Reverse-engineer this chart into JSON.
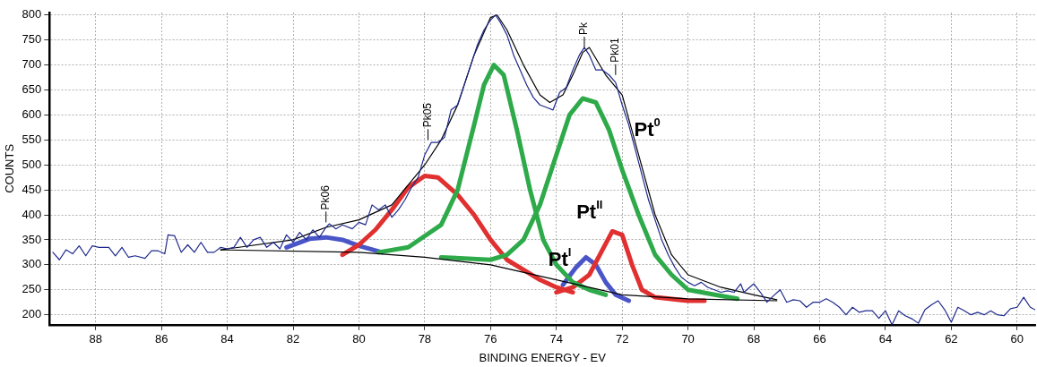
{
  "chart_data": {
    "type": "line",
    "xlabel": "BINDING ENERGY - EV",
    "ylabel": "COUNTS",
    "xlim": [
      89.4,
      59.45
    ],
    "xticks": [
      88,
      86,
      84,
      82,
      80,
      78,
      76,
      74,
      72,
      70,
      68,
      66,
      64,
      62,
      60
    ],
    "ylim": [
      180,
      805
    ],
    "yticks": [
      200,
      250,
      300,
      350,
      400,
      450,
      500,
      550,
      600,
      650,
      700,
      750,
      800
    ],
    "grid": true,
    "legend": false,
    "marker": "none",
    "line_style": "solid",
    "annotations": [
      {
        "text": "Pk06",
        "x": 81.0,
        "y": 385
      },
      {
        "text": "Pk05",
        "x": 77.9,
        "y": 550
      },
      {
        "text": "Pk",
        "x": 73.15,
        "y": 735
      },
      {
        "text": "Pk01",
        "x": 72.2,
        "y": 680
      },
      {
        "text": "Pt$^{0}$",
        "x": 71.8,
        "y": 580
      },
      {
        "text": "Pt$^{II}$",
        "x": 72.3,
        "y": 367
      },
      {
        "text": "Pt$^{I}$",
        "x": 73.1,
        "y": 315
      }
    ],
    "series": [
      {
        "color": "#1f2a8c",
        "x": [
          89.3,
          89.1,
          88.9,
          88.7,
          88.5,
          88.3,
          88.1,
          87.9,
          87.6,
          87.4,
          87.2,
          87.0,
          86.8,
          86.5,
          86.3,
          86.1,
          85.9,
          85.8,
          85.6,
          85.4,
          85.2,
          85.0,
          84.8,
          84.6,
          84.4,
          84.2,
          84.0,
          83.8,
          83.6,
          83.4,
          83.2,
          83.0,
          82.8,
          82.6,
          82.4,
          82.2,
          82.0,
          81.8,
          81.6,
          81.4,
          81.2,
          81.0,
          80.9,
          80.7,
          80.5,
          80.2,
          80.0,
          79.8,
          79.6,
          79.4,
          79.2,
          79.0,
          78.8,
          78.6,
          78.4,
          78.2,
          78.0,
          77.8,
          77.6,
          77.4,
          77.2,
          77.0,
          76.8,
          76.6,
          76.4,
          76.2,
          76.0,
          75.85,
          75.7,
          75.5,
          75.3,
          75.1,
          74.9,
          74.7,
          74.5,
          74.3,
          74.1,
          73.9,
          73.7,
          73.5,
          73.3,
          73.15,
          73.0,
          72.8,
          72.6,
          72.4,
          72.2,
          72.0,
          71.8,
          71.6,
          71.4,
          71.2,
          71.0,
          70.8,
          70.6,
          70.4,
          70.2,
          70.0,
          69.8,
          69.6,
          69.4,
          69.2,
          69.0,
          68.8,
          68.6,
          68.4,
          68.3,
          68.0,
          67.8,
          67.6,
          67.4,
          67.2,
          67.0,
          66.8,
          66.6,
          66.4,
          66.2,
          66.0,
          65.8,
          65.6,
          65.4,
          65.2,
          65.0,
          64.8,
          64.6,
          64.4,
          64.2,
          64.0,
          63.8,
          63.6,
          63.4,
          63.2,
          63.0,
          62.8,
          62.6,
          62.4,
          62.2,
          62.0,
          61.8,
          61.6,
          61.4,
          61.2,
          61.0,
          60.8,
          60.6,
          60.4,
          60.2,
          60.0,
          59.8,
          59.6,
          59.45
        ],
        "values": [
          325,
          310,
          330,
          322,
          338,
          318,
          338,
          335,
          335,
          318,
          335,
          315,
          318,
          313,
          328,
          328,
          322,
          360,
          358,
          325,
          340,
          325,
          345,
          325,
          325,
          335,
          332,
          335,
          355,
          335,
          350,
          355,
          335,
          345,
          332,
          360,
          345,
          365,
          350,
          370,
          355,
          375,
          382,
          372,
          380,
          372,
          385,
          380,
          420,
          410,
          420,
          395,
          410,
          430,
          455,
          475,
          520,
          545,
          545,
          555,
          610,
          620,
          660,
          700,
          740,
          770,
          790,
          800,
          785,
          760,
          720,
          690,
          660,
          635,
          620,
          615,
          610,
          645,
          655,
          690,
          720,
          735,
          720,
          690,
          690,
          680,
          665,
          620,
          580,
          530,
          480,
          430,
          390,
          350,
          320,
          295,
          275,
          265,
          258,
          265,
          255,
          250,
          245,
          248,
          245,
          262,
          245,
          262,
          245,
          225,
          238,
          250,
          225,
          230,
          228,
          215,
          225,
          225,
          232,
          225,
          215,
          200,
          215,
          205,
          208,
          208,
          193,
          208,
          180,
          208,
          198,
          192,
          183,
          210,
          220,
          228,
          210,
          185,
          215,
          208,
          200,
          205,
          200,
          208,
          200,
          198,
          212,
          215,
          235,
          215,
          210
        ]
      },
      {
        "color": "#000000",
        "x": [
          84.2,
          82,
          81,
          80,
          79,
          78,
          77.5,
          77,
          76.5,
          76,
          75.8,
          75.5,
          75,
          74.5,
          74.2,
          73.8,
          73.5,
          73.2,
          73,
          72.5,
          72,
          71.5,
          71,
          70.5,
          70,
          69,
          68,
          67.3
        ],
        "values": [
          330,
          350,
          375,
          390,
          420,
          500,
          550,
          620,
          720,
          795,
          800,
          770,
          700,
          640,
          625,
          640,
          680,
          725,
          735,
          680,
          640,
          520,
          400,
          320,
          280,
          255,
          240,
          230
        ]
      },
      {
        "color": "#000000",
        "x": [
          84.2,
          80,
          78,
          76,
          74,
          72,
          70,
          67.3
        ],
        "values": [
          330,
          325,
          315,
          300,
          270,
          240,
          232,
          228
        ]
      },
      {
        "color": "#2eaa4a",
        "x": [
          79.4,
          78.5,
          77.5,
          77,
          76.5,
          76.2,
          75.9,
          75.6,
          75.2,
          74.8,
          74.4,
          74,
          73.5,
          73,
          72.5
        ],
        "values": [
          325,
          335,
          380,
          450,
          580,
          660,
          700,
          680,
          570,
          450,
          350,
          300,
          265,
          250,
          240
        ]
      },
      {
        "color": "#2eaa4a",
        "x": [
          77.5,
          76,
          75.5,
          75,
          74.5,
          74,
          73.6,
          73.2,
          72.8,
          72.4,
          72,
          71.5,
          71,
          70.5,
          70,
          69,
          68.5
        ],
        "values": [
          315,
          310,
          320,
          350,
          420,
          520,
          600,
          633,
          625,
          570,
          490,
          400,
          320,
          280,
          250,
          238,
          232
        ]
      },
      {
        "color": "#e03030",
        "x": [
          80.5,
          80,
          79.5,
          79,
          78.5,
          78,
          77.6,
          77,
          76.5,
          76,
          75.5,
          75,
          74.5,
          74,
          73.5
        ],
        "values": [
          320,
          340,
          370,
          410,
          455,
          478,
          475,
          440,
          400,
          350,
          310,
          290,
          270,
          255,
          245
        ]
      },
      {
        "color": "#e03030",
        "x": [
          74,
          73.5,
          73,
          72.6,
          72.3,
          72,
          71.7,
          71.4,
          71,
          70,
          69.5
        ],
        "values": [
          245,
          255,
          280,
          330,
          367,
          360,
          300,
          250,
          235,
          228,
          228
        ]
      },
      {
        "color": "#4a55c8",
        "x": [
          82.2,
          81.5,
          81,
          80.5,
          80,
          79.3
        ],
        "values": [
          335,
          352,
          355,
          350,
          338,
          325
        ]
      },
      {
        "color": "#4a55c8",
        "x": [
          73.8,
          73.4,
          73.1,
          72.8,
          72.5,
          72.2,
          71.8
        ],
        "values": [
          260,
          295,
          315,
          300,
          265,
          240,
          228
        ]
      }
    ]
  }
}
